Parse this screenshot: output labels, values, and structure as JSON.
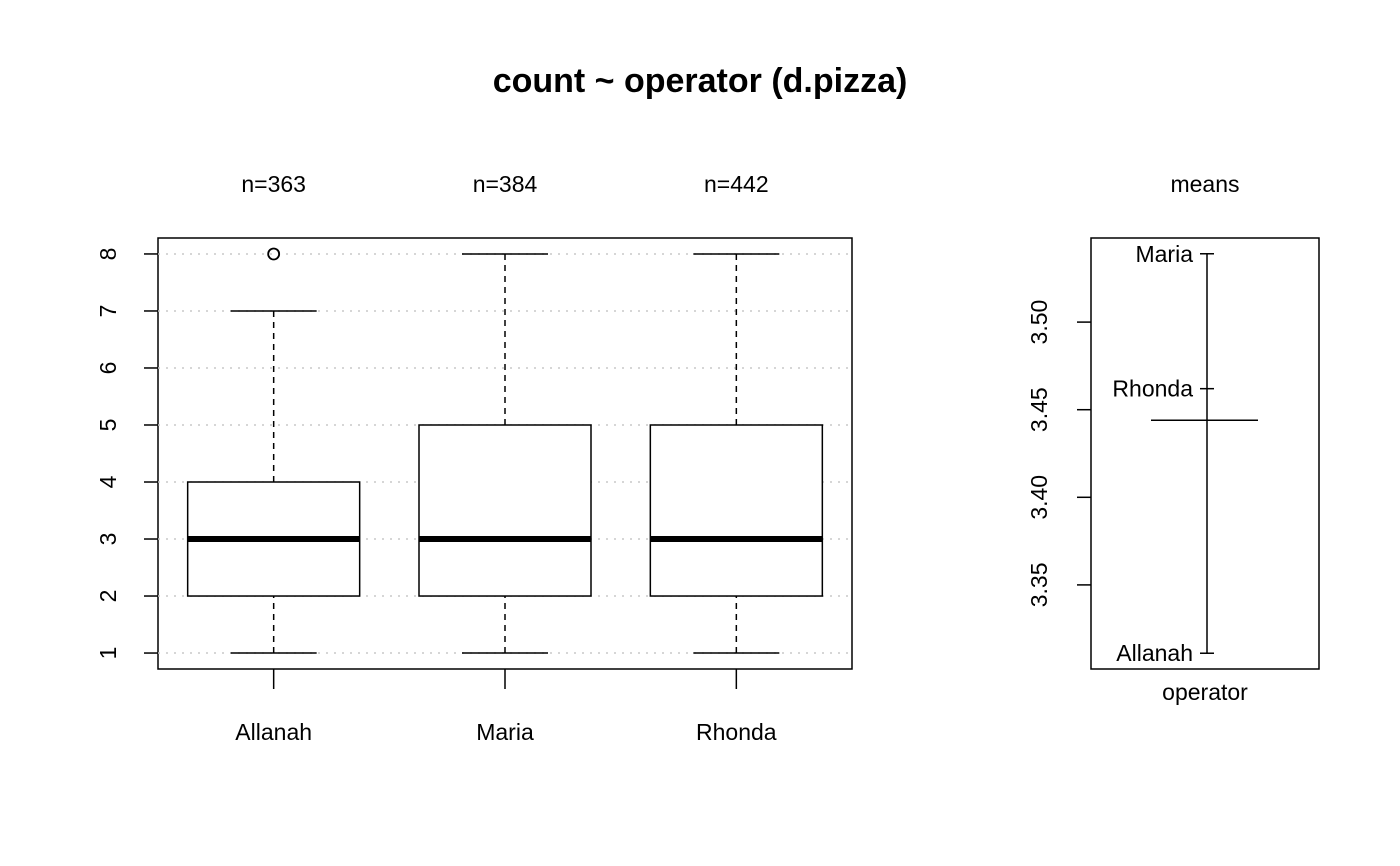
{
  "chart_data": [
    {
      "type": "box",
      "title": "count ~ operator (d.pizza)",
      "categories": [
        "Allanah",
        "Maria",
        "Rhonda"
      ],
      "counts": [
        "n=363",
        "n=384",
        "n=442"
      ],
      "boxes": [
        {
          "whisker_low": 1,
          "q1": 2,
          "median": 3,
          "q3": 4,
          "whisker_high": 7,
          "outliers": [
            8
          ]
        },
        {
          "whisker_low": 1,
          "q1": 2,
          "median": 3,
          "q3": 5,
          "whisker_high": 8,
          "outliers": []
        },
        {
          "whisker_low": 1,
          "q1": 2,
          "median": 3,
          "q3": 5,
          "whisker_high": 8,
          "outliers": []
        }
      ],
      "y_ticks": [
        1,
        2,
        3,
        4,
        5,
        6,
        7,
        8
      ],
      "ylim": [
        0.72,
        8.28
      ],
      "grid": true
    },
    {
      "type": "dotchart",
      "title": "means",
      "xlabel": "operator",
      "grand_mean": 3.444,
      "points": [
        {
          "label": "Maria",
          "value": 3.539
        },
        {
          "label": "Rhonda",
          "value": 3.462
        },
        {
          "label": "Allanah",
          "value": 3.311
        }
      ],
      "y_ticks": [
        "3.35",
        "3.40",
        "3.45",
        "3.50"
      ],
      "ylim": [
        3.302,
        3.548
      ]
    }
  ]
}
